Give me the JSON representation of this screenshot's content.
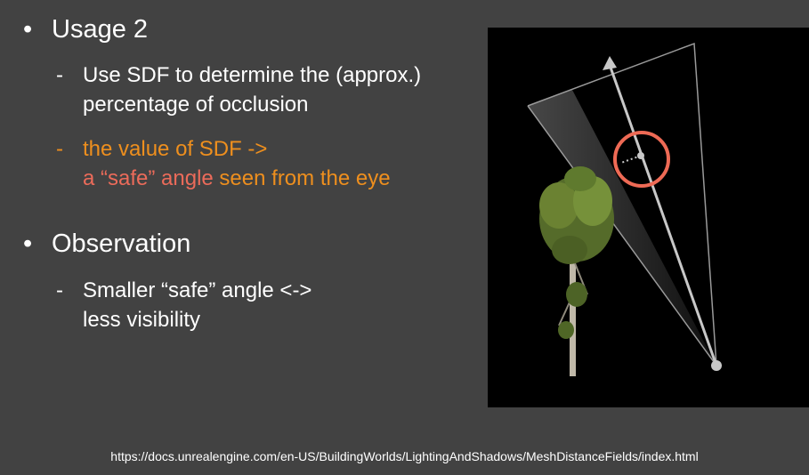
{
  "bullets": [
    {
      "title": "Usage 2",
      "subs": [
        {
          "lines": [
            "Use SDF to determine the (approx.)",
            "percentage of occlusion"
          ]
        },
        {
          "line1": "the value of SDF ->",
          "line2_part1": "a “safe” angle",
          "line2_part2": " seen from the eye"
        }
      ]
    },
    {
      "title": "Observation",
      "subs": [
        {
          "lines": [
            "Smaller “safe” angle <->",
            "less visibility"
          ]
        }
      ]
    }
  ],
  "dash": "-",
  "dot": "•",
  "colors": {
    "background": "#424242",
    "orange": "#ee8f1e",
    "salmon": "#ec6b5a",
    "circle": "#ee6a55"
  },
  "source_url": "https://docs.unrealengine.com/en-US/BuildingWorlds/LightingAndShadows/MeshDistanceFields/index.html"
}
